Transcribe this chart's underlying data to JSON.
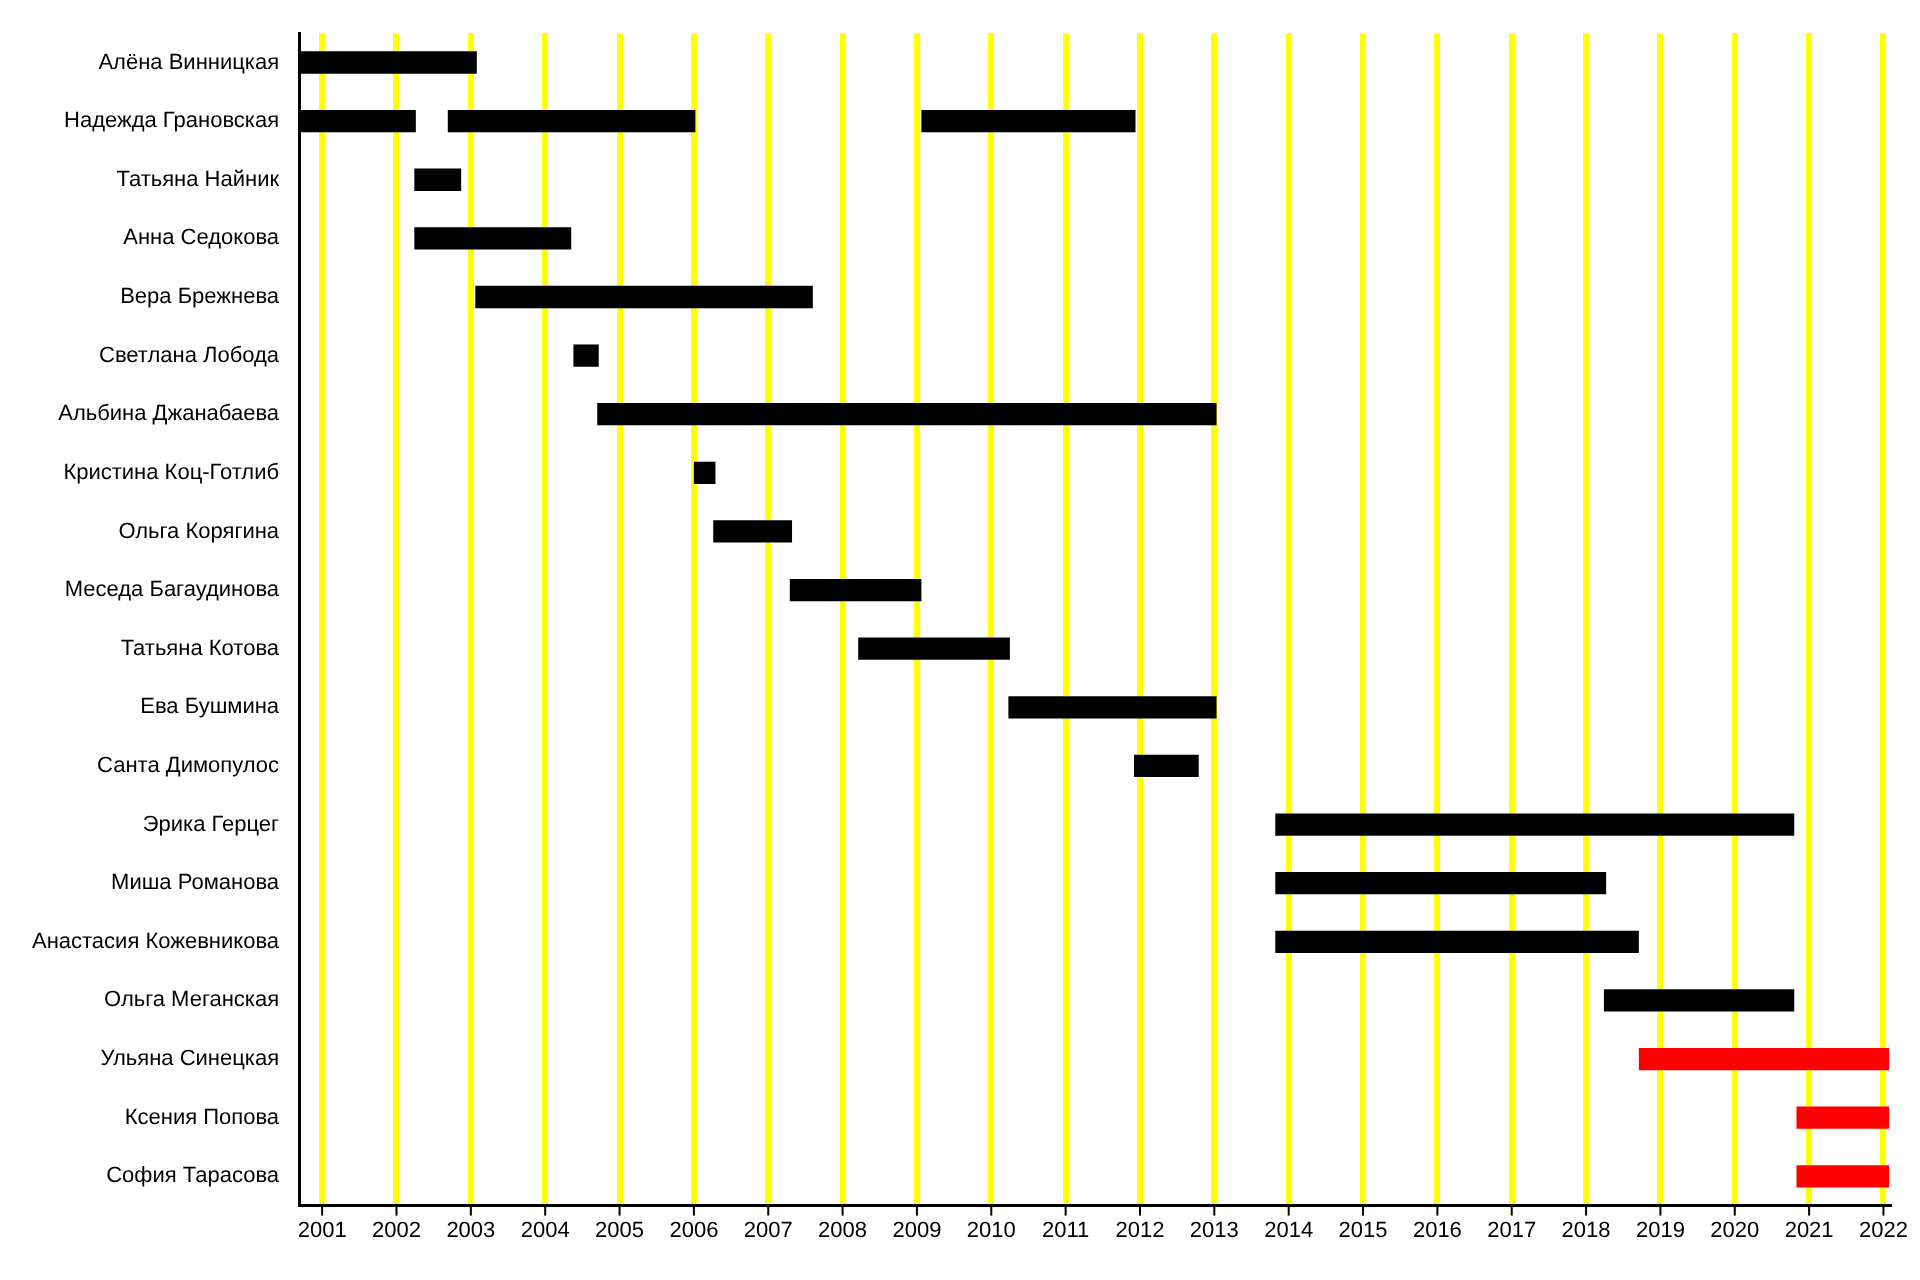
{
  "chart_data": {
    "type": "bar",
    "orientation": "horizontal",
    "categories": [
      "Алёна Винницкая",
      "Надежда Грановская",
      "Татьяна Найник",
      "Анна Седокова",
      "Вера Брежнева",
      "Светлана Лобода",
      "Альбина Джанабаева",
      "Кристина Коц-Готлиб",
      "Ольга Корягина",
      "Меседа Багаудинова",
      "Татьяна Котова",
      "Ева Бушмина",
      "Санта Димопулос",
      "Эрика Герцег",
      "Миша Романова",
      "Анастасия Кожевникова",
      "Ольга Меганская",
      "Ульяна Синецкая",
      "Ксения Попова",
      "София Тарасова"
    ],
    "series": [
      {
        "color": "#000000",
        "base": [
          2000.69,
          2000.69,
          2002.24,
          2002.24,
          2003.06,
          2004.38,
          2004.7,
          2006.0,
          2006.26,
          2007.29,
          2008.21,
          2010.23,
          2011.92,
          2013.82,
          2013.82,
          2013.82,
          2018.24,
          null,
          null,
          null
        ],
        "values": [
          2.39,
          1.57,
          0.63,
          2.11,
          4.54,
          0.34,
          8.33,
          0.29,
          1.06,
          1.77,
          2.04,
          2.8,
          0.87,
          6.98,
          4.45,
          4.89,
          2.56,
          null,
          null,
          null
        ]
      },
      {
        "color": "#000000",
        "base": [
          null,
          2002.69,
          null,
          null,
          null,
          null,
          null,
          null,
          null,
          null,
          null,
          null,
          null,
          null,
          null,
          null,
          null,
          null,
          null,
          null
        ],
        "values": [
          null,
          3.33,
          null,
          null,
          null,
          null,
          null,
          null,
          null,
          null,
          null,
          null,
          null,
          null,
          null,
          null,
          null,
          null,
          null,
          null
        ]
      },
      {
        "color": "#000000",
        "base": [
          null,
          2009.06,
          null,
          null,
          null,
          null,
          null,
          null,
          null,
          null,
          null,
          null,
          null,
          null,
          null,
          null,
          null,
          null,
          null,
          null
        ],
        "values": [
          null,
          2.88,
          null,
          null,
          null,
          null,
          null,
          null,
          null,
          null,
          null,
          null,
          null,
          null,
          null,
          null,
          null,
          null,
          null,
          null
        ]
      },
      {
        "color": "#ff0000",
        "base": [
          null,
          null,
          null,
          null,
          null,
          null,
          null,
          null,
          null,
          null,
          null,
          null,
          null,
          null,
          null,
          null,
          null,
          2018.71,
          2020.83,
          2020.83
        ],
        "values": [
          null,
          null,
          null,
          null,
          null,
          null,
          null,
          null,
          null,
          null,
          null,
          null,
          null,
          null,
          null,
          null,
          null,
          3.37,
          1.25,
          1.25
        ]
      }
    ],
    "xlim": [
      2000.69,
      2022.08
    ],
    "xticks": [
      2001,
      2002,
      2003,
      2004,
      2005,
      2006,
      2007,
      2008,
      2009,
      2010,
      2011,
      2012,
      2013,
      2014,
      2015,
      2016,
      2017,
      2018,
      2019,
      2020,
      2021,
      2022
    ],
    "grid": "x",
    "legend": false
  }
}
